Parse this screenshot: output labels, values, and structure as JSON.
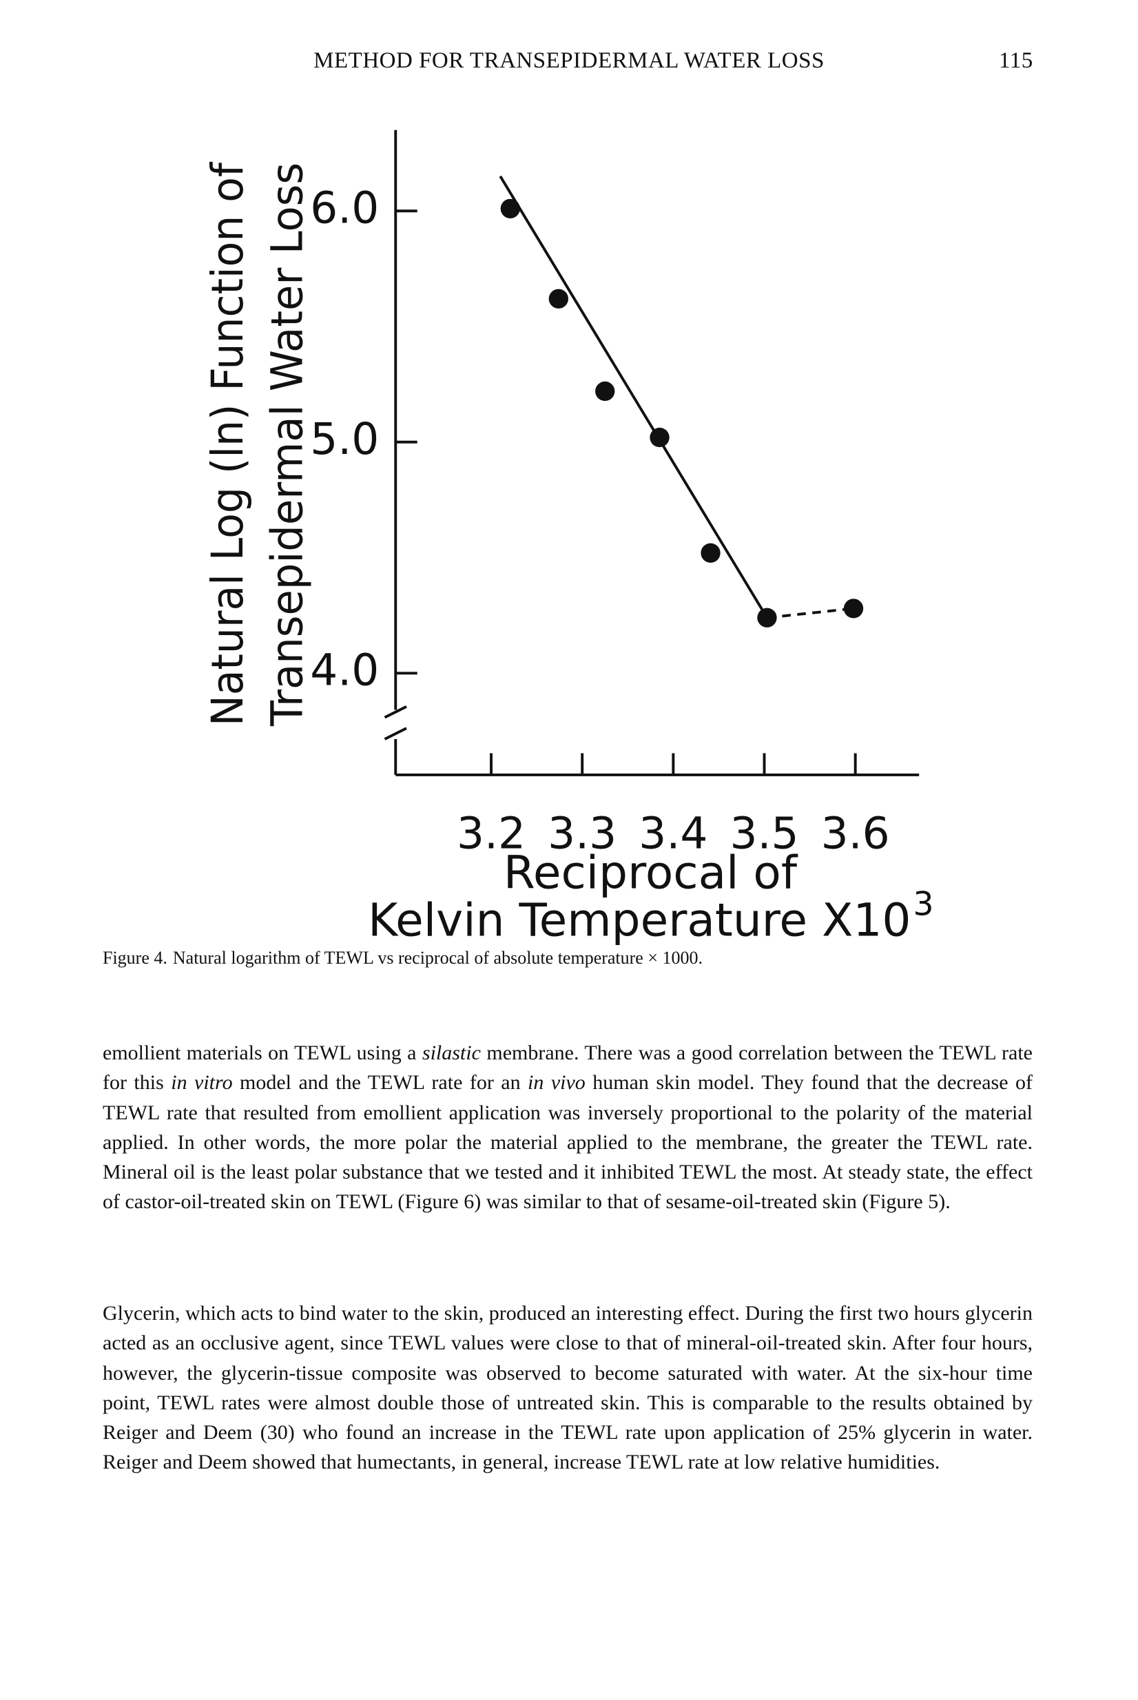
{
  "header": {
    "title": "METHOD FOR TRANSEPIDERMAL WATER LOSS",
    "page_number": "115"
  },
  "chart_data": {
    "type": "scatter",
    "ylabel": [
      "Natural Log (ln) Function of",
      "Transepidermal Water Loss"
    ],
    "xlabel": [
      "Reciprocal of",
      "Kelvin Temperature X10"
    ],
    "xlabel_superscript": "3",
    "x": [
      3.221,
      3.274,
      3.325,
      3.385,
      3.441,
      3.503,
      3.598
    ],
    "y": [
      6.01,
      5.62,
      5.22,
      5.02,
      4.52,
      4.24,
      4.28
    ],
    "color": "#111111",
    "fit_line": {
      "x": [
        3.21,
        3.503
      ],
      "y": [
        6.15,
        4.24
      ]
    },
    "xlim": [
      3.095,
      3.67
    ],
    "ylim": [
      3.56,
      6.35
    ],
    "xticks": [
      3.2,
      3.3,
      3.4,
      3.5,
      3.6
    ],
    "yticks": [
      {
        "value": 6,
        "label": "6.0"
      },
      {
        "value": 5,
        "label": "5.0"
      },
      {
        "value": 4,
        "label": "4.0"
      }
    ],
    "axis_break": true
  },
  "caption": {
    "label": "Figure 4.",
    "text": "Natural logarithm of TEWL vs reciprocal of absolute temperature × 1000."
  },
  "paragraphs": [
    [
      {
        "text": "emollient materials on TEWL using a "
      },
      {
        "text": "silastic",
        "italic": true
      },
      {
        "text": " membrane. There was a good correlation between the TEWL rate for this "
      },
      {
        "text": "in vitro",
        "italic": true
      },
      {
        "text": " model and the TEWL rate for an "
      },
      {
        "text": "in vivo",
        "italic": true
      },
      {
        "text": " human skin model. They found that the decrease of TEWL rate that resulted from emollient application was inversely proportional to the polarity of the material applied. In other words, the more polar the material applied to the membrane, the greater the TEWL rate. Mineral oil is the least polar substance that we tested and it inhibited TEWL the most. At steady state, the effect of castor-oil-treated skin on TEWL (Figure 6) was similar to that of sesame-oil-treated skin (Figure 5)."
      }
    ],
    [
      {
        "text": "Glycerin, which acts to bind water to the skin, produced an interesting effect. During the first two hours glycerin acted as an occlusive agent, since TEWL values were close to that of mineral-oil-treated skin. After four hours, however, the glycerin-tissue composite was observed to become saturated with water. At the six-hour time point, TEWL rates were almost double those of untreated skin. This is comparable to the results obtained by Reiger and Deem (30) who found an increase in the TEWL rate upon application of 25% glycerin in water. Reiger and Deem showed that humectants, in general, increase TEWL rate at low relative humidities."
      }
    ]
  ]
}
